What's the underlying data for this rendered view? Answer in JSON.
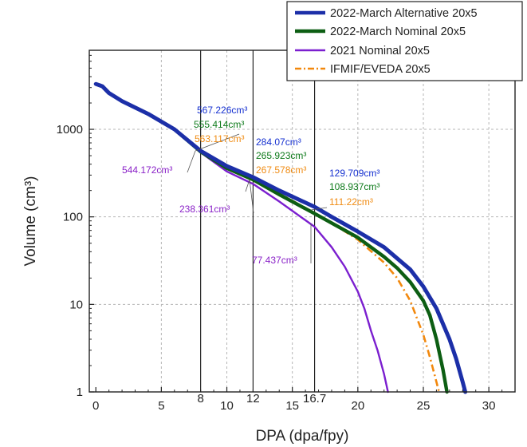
{
  "chart_data": {
    "type": "line",
    "title": "",
    "xlabel": "DPA (dpa/fpy)",
    "ylabel": "Volume (cm³)",
    "xlim": [
      -0.5,
      32
    ],
    "ylim": [
      1,
      8000
    ],
    "y_scale": "log",
    "grid": true,
    "legend_position": "top-right",
    "x_ticks": [
      "0",
      "5",
      "10",
      "15",
      "20",
      "25",
      "30"
    ],
    "x_extra_ticks": [
      "8",
      "12",
      "16.7"
    ],
    "y_ticks": [
      "1",
      "10",
      "100",
      "1000"
    ],
    "vertical_lines": [
      8,
      12,
      16.7
    ],
    "series": [
      {
        "name": "2022-March Alternative 20x5",
        "color": "#1c2fa8",
        "style": "solid",
        "x": [
          0,
          0.5,
          1,
          2,
          4,
          6,
          8,
          10,
          12,
          14,
          16.7,
          18,
          20,
          22,
          24,
          25,
          26,
          27,
          27.5,
          28,
          28.2
        ],
        "y": [
          3300,
          3100,
          2600,
          2100,
          1500,
          1000,
          567,
          380,
          284,
          200,
          130,
          100,
          68,
          45,
          25,
          16,
          9,
          4,
          2.4,
          1.3,
          1
        ]
      },
      {
        "name": "2022-March Nominal 20x5",
        "color": "#0d5e13",
        "style": "solid",
        "x": [
          0,
          0.5,
          1,
          2,
          4,
          6,
          8,
          10,
          12,
          14,
          16.7,
          18,
          20,
          22,
          23,
          24,
          25,
          25.5,
          26,
          26.5,
          26.8
        ],
        "y": [
          3300,
          3100,
          2600,
          2100,
          1500,
          1000,
          555,
          360,
          266,
          180,
          109,
          85,
          58,
          35,
          26,
          18,
          11,
          7.5,
          4,
          1.8,
          1
        ]
      },
      {
        "name": "2021 Nominal 20x5",
        "color": "#7b1fcf",
        "style": "solid",
        "x": [
          0,
          0.5,
          1,
          2,
          4,
          6,
          8,
          10,
          12,
          14,
          16.7,
          18,
          19,
          20,
          20.5,
          21,
          21.5,
          22,
          22.3
        ],
        "y": [
          3300,
          3100,
          2600,
          2100,
          1500,
          1000,
          544,
          330,
          238,
          150,
          77,
          45,
          27,
          14,
          9,
          5,
          3,
          1.6,
          1
        ]
      },
      {
        "name": "IFMIF/EVEDA 20x5",
        "color": "#f2880d",
        "style": "dashdot",
        "x": [
          0,
          0.5,
          1,
          2,
          4,
          6,
          8,
          10,
          12,
          14,
          16.7,
          18,
          20,
          22,
          23,
          24,
          24.5,
          25,
          25.5,
          26,
          26.2
        ],
        "y": [
          3300,
          3100,
          2600,
          2100,
          1500,
          1000,
          563,
          370,
          268,
          185,
          111,
          85,
          55,
          30,
          20,
          11,
          7,
          4.5,
          2.5,
          1.3,
          1
        ]
      }
    ],
    "annotations": [
      {
        "text": "567.226cm³",
        "color": "#1530d0",
        "x": 8,
        "y": 567.226
      },
      {
        "text": "555.414cm³",
        "color": "#0d7a1a",
        "x": 8,
        "y": 555.414
      },
      {
        "text": "563.117cm³",
        "color": "#f08c14",
        "x": 8,
        "y": 563.117
      },
      {
        "text": "544.172cm³",
        "color": "#8a22c8",
        "x": 8,
        "y": 544.172
      },
      {
        "text": "284.07cm³",
        "color": "#1530d0",
        "x": 12,
        "y": 284.07
      },
      {
        "text": "265.923cm³",
        "color": "#0d7a1a",
        "x": 12,
        "y": 265.923
      },
      {
        "text": "267.578cm³",
        "color": "#f08c14",
        "x": 12,
        "y": 267.578
      },
      {
        "text": "238.361cm³",
        "color": "#8a22c8",
        "x": 12,
        "y": 238.361
      },
      {
        "text": "129.709cm³",
        "color": "#1530d0",
        "x": 16.7,
        "y": 129.709
      },
      {
        "text": "108.937cm³",
        "color": "#0d7a1a",
        "x": 16.7,
        "y": 108.937
      },
      {
        "text": "111.22cm³",
        "color": "#f08c14",
        "x": 16.7,
        "y": 111.22
      },
      {
        "text": "77.437cm³",
        "color": "#8a22c8",
        "x": 16.7,
        "y": 77.437
      }
    ]
  }
}
